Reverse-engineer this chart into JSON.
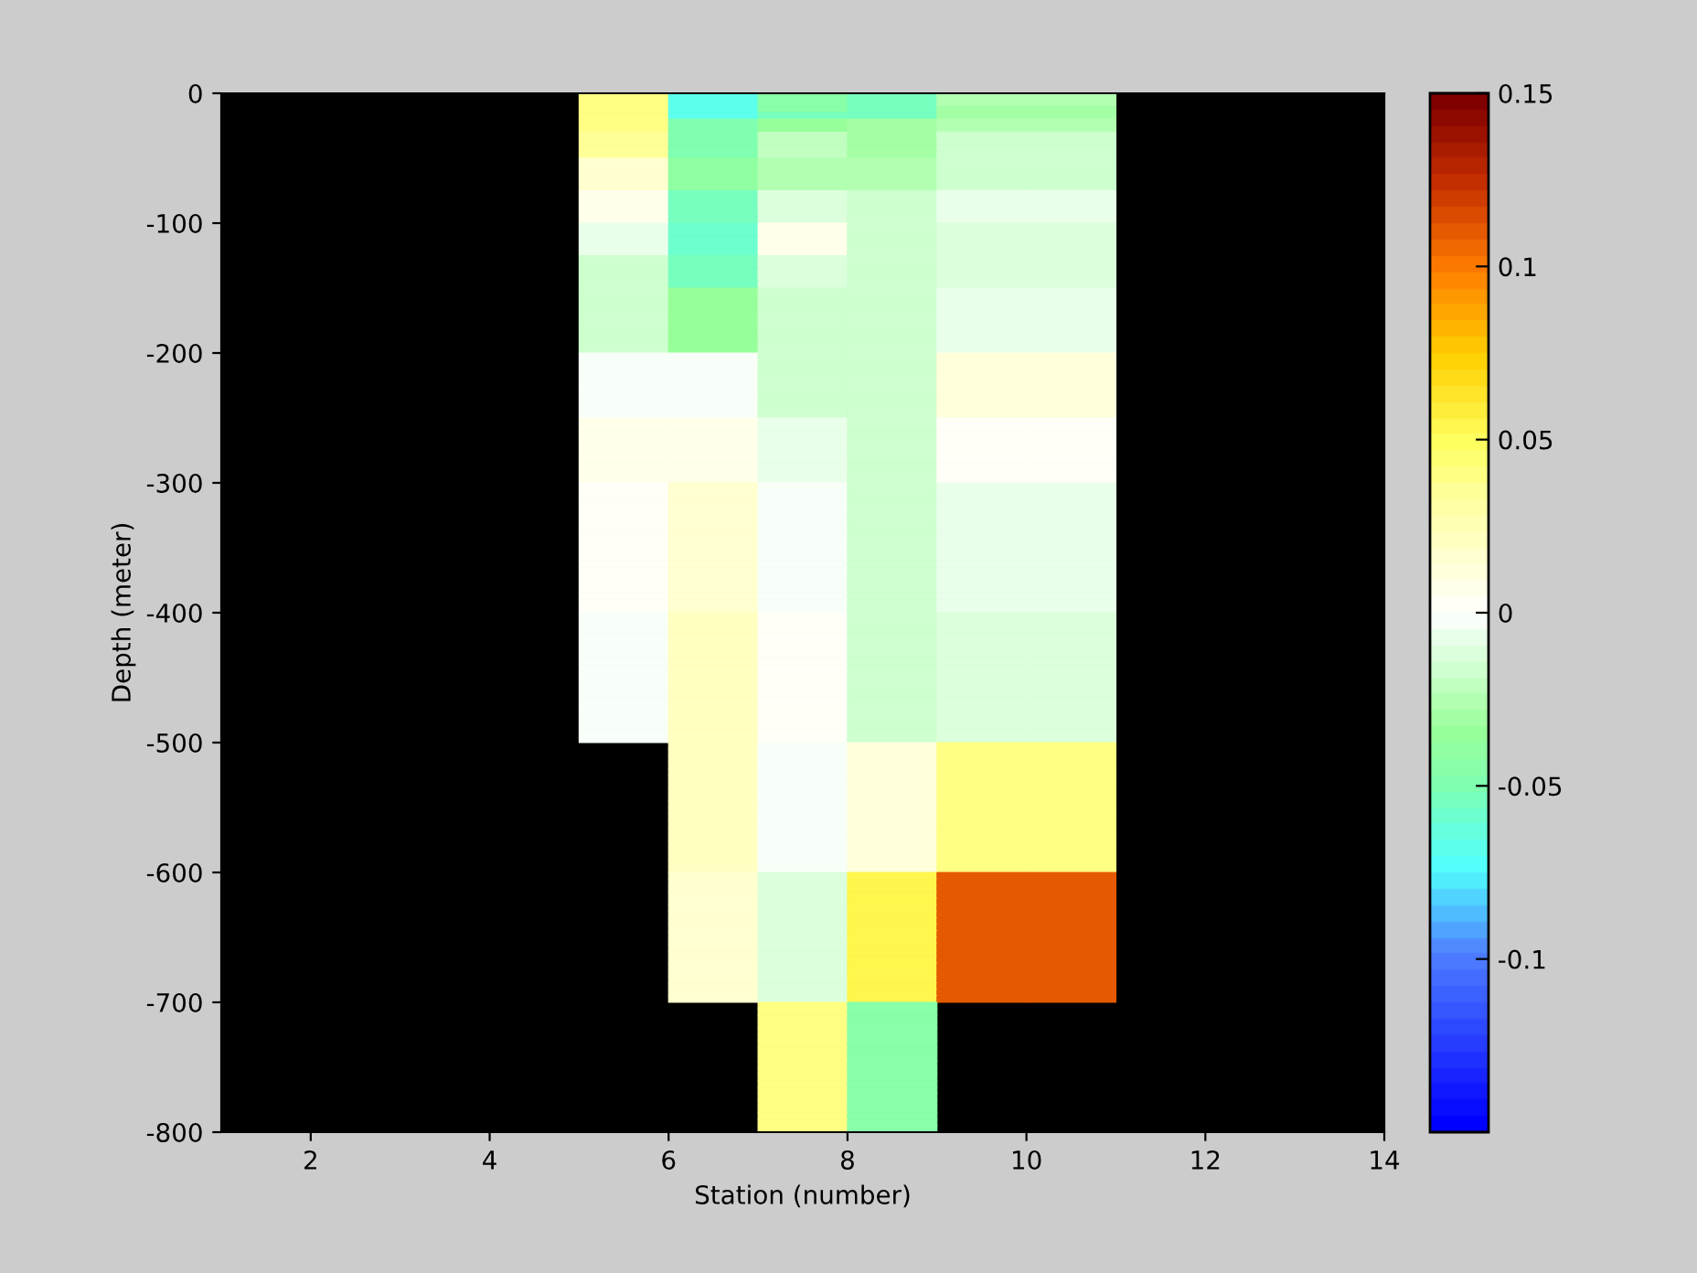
{
  "chart_data": {
    "type": "heatmap",
    "xlabel": "Station (number)",
    "ylabel": "Depth (meter)",
    "cells": [
      [
        null,
        null,
        null,
        null,
        0.04,
        -0.07,
        -0.045,
        -0.055,
        -0.025,
        -0.025,
        null,
        null,
        null
      ],
      [
        null,
        null,
        null,
        null,
        0.04,
        -0.07,
        -0.045,
        -0.055,
        -0.025,
        -0.025,
        null,
        null,
        null
      ],
      [
        null,
        null,
        null,
        null,
        0.04,
        -0.07,
        -0.045,
        -0.055,
        -0.032,
        -0.032,
        null,
        null,
        null
      ],
      [
        null,
        null,
        null,
        null,
        0.04,
        -0.07,
        -0.055,
        -0.055,
        -0.032,
        -0.032,
        null,
        null,
        null
      ],
      [
        null,
        null,
        null,
        null,
        0.038,
        -0.05,
        -0.035,
        -0.032,
        -0.025,
        -0.025,
        null,
        null,
        null
      ],
      [
        null,
        null,
        null,
        null,
        0.038,
        -0.05,
        -0.035,
        -0.032,
        -0.025,
        -0.025,
        null,
        null,
        null
      ],
      [
        null,
        null,
        null,
        null,
        0.033,
        -0.048,
        -0.02,
        -0.032,
        -0.015,
        -0.015,
        null,
        null,
        null
      ],
      [
        null,
        null,
        null,
        null,
        0.033,
        -0.048,
        -0.02,
        -0.032,
        -0.015,
        -0.015,
        null,
        null,
        null
      ],
      [
        null,
        null,
        null,
        null,
        0.033,
        -0.048,
        -0.02,
        -0.032,
        -0.015,
        -0.015,
        null,
        null,
        null
      ],
      [
        null,
        null,
        null,
        null,
        0.033,
        -0.048,
        -0.02,
        -0.032,
        -0.015,
        -0.015,
        null,
        null,
        null
      ],
      [
        null,
        null,
        null,
        null,
        0.018,
        -0.042,
        -0.028,
        -0.028,
        -0.015,
        -0.015,
        null,
        null,
        null
      ],
      [
        null,
        null,
        null,
        null,
        0.018,
        -0.042,
        -0.028,
        -0.028,
        -0.015,
        -0.015,
        null,
        null,
        null
      ],
      [
        null,
        null,
        null,
        null,
        0.018,
        -0.042,
        -0.028,
        -0.028,
        -0.015,
        -0.015,
        null,
        null,
        null
      ],
      [
        null,
        null,
        null,
        null,
        0.018,
        -0.042,
        -0.028,
        -0.028,
        -0.015,
        -0.015,
        null,
        null,
        null
      ],
      [
        null,
        null,
        null,
        null,
        0.018,
        -0.042,
        -0.028,
        -0.028,
        -0.015,
        -0.015,
        null,
        null,
        null
      ],
      [
        null,
        null,
        null,
        null,
        0.008,
        -0.052,
        -0.01,
        -0.015,
        -0.006,
        -0.006,
        null,
        null,
        null
      ],
      [
        null,
        null,
        null,
        null,
        0.008,
        -0.052,
        -0.01,
        -0.015,
        -0.006,
        -0.006,
        null,
        null,
        null
      ],
      [
        null,
        null,
        null,
        null,
        0.008,
        -0.052,
        -0.01,
        -0.015,
        -0.006,
        -0.006,
        null,
        null,
        null
      ],
      [
        null,
        null,
        null,
        null,
        0.008,
        -0.052,
        -0.01,
        -0.015,
        -0.006,
        -0.006,
        null,
        null,
        null
      ],
      [
        null,
        null,
        null,
        null,
        0.008,
        -0.052,
        -0.01,
        -0.015,
        -0.006,
        -0.006,
        null,
        null,
        null
      ],
      [
        null,
        null,
        null,
        null,
        -0.006,
        -0.058,
        0.008,
        -0.015,
        -0.01,
        -0.01,
        null,
        null,
        null
      ],
      [
        null,
        null,
        null,
        null,
        -0.006,
        -0.058,
        0.008,
        -0.015,
        -0.01,
        -0.01,
        null,
        null,
        null
      ],
      [
        null,
        null,
        null,
        null,
        -0.006,
        -0.058,
        0.008,
        -0.015,
        -0.01,
        -0.01,
        null,
        null,
        null
      ],
      [
        null,
        null,
        null,
        null,
        -0.006,
        -0.058,
        0.008,
        -0.015,
        -0.01,
        -0.01,
        null,
        null,
        null
      ],
      [
        null,
        null,
        null,
        null,
        -0.006,
        -0.058,
        0.008,
        -0.015,
        -0.01,
        -0.01,
        null,
        null,
        null
      ],
      [
        null,
        null,
        null,
        null,
        -0.015,
        -0.052,
        -0.01,
        -0.018,
        -0.01,
        -0.01,
        null,
        null,
        null
      ],
      [
        null,
        null,
        null,
        null,
        -0.015,
        -0.052,
        -0.01,
        -0.018,
        -0.01,
        -0.01,
        null,
        null,
        null
      ],
      [
        null,
        null,
        null,
        null,
        -0.015,
        -0.052,
        -0.01,
        -0.018,
        -0.01,
        -0.01,
        null,
        null,
        null
      ],
      [
        null,
        null,
        null,
        null,
        -0.015,
        -0.052,
        -0.01,
        -0.018,
        -0.01,
        -0.01,
        null,
        null,
        null
      ],
      [
        null,
        null,
        null,
        null,
        -0.015,
        -0.052,
        -0.01,
        -0.018,
        -0.01,
        -0.01,
        null,
        null,
        null
      ],
      [
        null,
        null,
        null,
        null,
        -0.015,
        -0.035,
        -0.018,
        -0.018,
        -0.006,
        -0.006,
        null,
        null,
        null
      ],
      [
        null,
        null,
        null,
        null,
        -0.015,
        -0.035,
        -0.018,
        -0.018,
        -0.006,
        -0.006,
        null,
        null,
        null
      ],
      [
        null,
        null,
        null,
        null,
        -0.015,
        -0.035,
        -0.018,
        -0.018,
        -0.006,
        -0.006,
        null,
        null,
        null
      ],
      [
        null,
        null,
        null,
        null,
        -0.015,
        -0.035,
        -0.018,
        -0.018,
        -0.006,
        -0.006,
        null,
        null,
        null
      ],
      [
        null,
        null,
        null,
        null,
        -0.015,
        -0.035,
        -0.018,
        -0.018,
        -0.006,
        -0.006,
        null,
        null,
        null
      ],
      [
        null,
        null,
        null,
        null,
        -0.015,
        -0.035,
        -0.018,
        -0.018,
        -0.006,
        -0.006,
        null,
        null,
        null
      ],
      [
        null,
        null,
        null,
        null,
        -0.015,
        -0.035,
        -0.018,
        -0.018,
        -0.006,
        -0.006,
        null,
        null,
        null
      ],
      [
        null,
        null,
        null,
        null,
        -0.015,
        -0.035,
        -0.018,
        -0.018,
        -0.006,
        -0.006,
        null,
        null,
        null
      ],
      [
        null,
        null,
        null,
        null,
        -0.015,
        -0.035,
        -0.018,
        -0.018,
        -0.006,
        -0.006,
        null,
        null,
        null
      ],
      [
        null,
        null,
        null,
        null,
        -0.015,
        -0.035,
        -0.018,
        -0.018,
        -0.006,
        -0.006,
        null,
        null,
        null
      ],
      [
        null,
        null,
        null,
        null,
        -0.003,
        -0.003,
        -0.015,
        -0.015,
        0.01,
        0.01,
        null,
        null,
        null
      ],
      [
        null,
        null,
        null,
        null,
        -0.003,
        -0.003,
        -0.015,
        -0.015,
        0.01,
        0.01,
        null,
        null,
        null
      ],
      [
        null,
        null,
        null,
        null,
        -0.003,
        -0.003,
        -0.015,
        -0.015,
        0.01,
        0.01,
        null,
        null,
        null
      ],
      [
        null,
        null,
        null,
        null,
        -0.003,
        -0.003,
        -0.015,
        -0.015,
        0.01,
        0.01,
        null,
        null,
        null
      ],
      [
        null,
        null,
        null,
        null,
        -0.003,
        -0.003,
        -0.015,
        -0.015,
        0.01,
        0.01,
        null,
        null,
        null
      ],
      [
        null,
        null,
        null,
        null,
        -0.003,
        -0.003,
        -0.015,
        -0.015,
        0.01,
        0.01,
        null,
        null,
        null
      ],
      [
        null,
        null,
        null,
        null,
        -0.003,
        -0.003,
        -0.015,
        -0.015,
        0.01,
        0.01,
        null,
        null,
        null
      ],
      [
        null,
        null,
        null,
        null,
        -0.003,
        -0.003,
        -0.015,
        -0.015,
        0.01,
        0.01,
        null,
        null,
        null
      ],
      [
        null,
        null,
        null,
        null,
        -0.003,
        -0.003,
        -0.015,
        -0.015,
        0.01,
        0.01,
        null,
        null,
        null
      ],
      [
        null,
        null,
        null,
        null,
        -0.003,
        -0.003,
        -0.015,
        -0.015,
        0.01,
        0.01,
        null,
        null,
        null
      ],
      [
        null,
        null,
        null,
        null,
        0.006,
        0.006,
        -0.008,
        -0.015,
        0.003,
        0.003,
        null,
        null,
        null
      ],
      [
        null,
        null,
        null,
        null,
        0.006,
        0.006,
        -0.008,
        -0.015,
        0.003,
        0.003,
        null,
        null,
        null
      ],
      [
        null,
        null,
        null,
        null,
        0.006,
        0.006,
        -0.008,
        -0.015,
        0.003,
        0.003,
        null,
        null,
        null
      ],
      [
        null,
        null,
        null,
        null,
        0.006,
        0.006,
        -0.008,
        -0.015,
        0.003,
        0.003,
        null,
        null,
        null
      ],
      [
        null,
        null,
        null,
        null,
        0.006,
        0.006,
        -0.008,
        -0.015,
        0.003,
        0.003,
        null,
        null,
        null
      ],
      [
        null,
        null,
        null,
        null,
        0.006,
        0.006,
        -0.008,
        -0.015,
        0.003,
        0.003,
        null,
        null,
        null
      ],
      [
        null,
        null,
        null,
        null,
        0.006,
        0.006,
        -0.008,
        -0.015,
        0.003,
        0.003,
        null,
        null,
        null
      ],
      [
        null,
        null,
        null,
        null,
        0.006,
        0.006,
        -0.008,
        -0.015,
        0.003,
        0.003,
        null,
        null,
        null
      ],
      [
        null,
        null,
        null,
        null,
        0.006,
        0.006,
        -0.008,
        -0.015,
        0.003,
        0.003,
        null,
        null,
        null
      ],
      [
        null,
        null,
        null,
        null,
        0.006,
        0.006,
        -0.008,
        -0.015,
        0.003,
        0.003,
        null,
        null,
        null
      ],
      [
        null,
        null,
        null,
        null,
        0.003,
        0.018,
        -0.003,
        -0.015,
        -0.008,
        -0.008,
        null,
        null,
        null
      ],
      [
        null,
        null,
        null,
        null,
        0.003,
        0.018,
        -0.003,
        -0.015,
        -0.008,
        -0.008,
        null,
        null,
        null
      ],
      [
        null,
        null,
        null,
        null,
        0.003,
        0.018,
        -0.003,
        -0.015,
        -0.008,
        -0.008,
        null,
        null,
        null
      ],
      [
        null,
        null,
        null,
        null,
        0.003,
        0.018,
        -0.003,
        -0.015,
        -0.008,
        -0.008,
        null,
        null,
        null
      ],
      [
        null,
        null,
        null,
        null,
        0.003,
        0.018,
        -0.003,
        -0.015,
        -0.008,
        -0.008,
        null,
        null,
        null
      ],
      [
        null,
        null,
        null,
        null,
        0.003,
        0.018,
        -0.003,
        -0.015,
        -0.008,
        -0.008,
        null,
        null,
        null
      ],
      [
        null,
        null,
        null,
        null,
        0.003,
        0.018,
        -0.003,
        -0.015,
        -0.008,
        -0.008,
        null,
        null,
        null
      ],
      [
        null,
        null,
        null,
        null,
        0.003,
        0.018,
        -0.003,
        -0.015,
        -0.008,
        -0.008,
        null,
        null,
        null
      ],
      [
        null,
        null,
        null,
        null,
        0.003,
        0.018,
        -0.003,
        -0.015,
        -0.008,
        -0.008,
        null,
        null,
        null
      ],
      [
        null,
        null,
        null,
        null,
        0.003,
        0.018,
        -0.003,
        -0.015,
        -0.008,
        -0.008,
        null,
        null,
        null
      ],
      [
        null,
        null,
        null,
        null,
        0.003,
        0.018,
        -0.003,
        -0.015,
        -0.008,
        -0.008,
        null,
        null,
        null
      ],
      [
        null,
        null,
        null,
        null,
        0.003,
        0.018,
        -0.003,
        -0.015,
        -0.008,
        -0.008,
        null,
        null,
        null
      ],
      [
        null,
        null,
        null,
        null,
        0.003,
        0.018,
        -0.003,
        -0.015,
        -0.008,
        -0.008,
        null,
        null,
        null
      ],
      [
        null,
        null,
        null,
        null,
        0.003,
        0.018,
        -0.003,
        -0.015,
        -0.008,
        -0.008,
        null,
        null,
        null
      ],
      [
        null,
        null,
        null,
        null,
        0.003,
        0.018,
        -0.003,
        -0.015,
        -0.008,
        -0.008,
        null,
        null,
        null
      ],
      [
        null,
        null,
        null,
        null,
        0.003,
        0.018,
        -0.003,
        -0.015,
        -0.008,
        -0.008,
        null,
        null,
        null
      ],
      [
        null,
        null,
        null,
        null,
        0.003,
        0.018,
        -0.003,
        -0.015,
        -0.008,
        -0.008,
        null,
        null,
        null
      ],
      [
        null,
        null,
        null,
        null,
        0.003,
        0.018,
        -0.003,
        -0.015,
        -0.008,
        -0.008,
        null,
        null,
        null
      ],
      [
        null,
        null,
        null,
        null,
        0.003,
        0.018,
        -0.003,
        -0.015,
        -0.008,
        -0.008,
        null,
        null,
        null
      ],
      [
        null,
        null,
        null,
        null,
        0.003,
        0.018,
        -0.003,
        -0.015,
        -0.008,
        -0.008,
        null,
        null,
        null
      ],
      [
        null,
        null,
        null,
        null,
        -0.003,
        0.02,
        0.003,
        -0.018,
        -0.01,
        -0.01,
        null,
        null,
        null
      ],
      [
        null,
        null,
        null,
        null,
        -0.003,
        0.02,
        0.003,
        -0.018,
        -0.01,
        -0.01,
        null,
        null,
        null
      ],
      [
        null,
        null,
        null,
        null,
        -0.003,
        0.02,
        0.003,
        -0.018,
        -0.01,
        -0.01,
        null,
        null,
        null
      ],
      [
        null,
        null,
        null,
        null,
        -0.003,
        0.02,
        0.003,
        -0.018,
        -0.01,
        -0.01,
        null,
        null,
        null
      ],
      [
        null,
        null,
        null,
        null,
        -0.003,
        0.02,
        0.003,
        -0.018,
        -0.01,
        -0.01,
        null,
        null,
        null
      ],
      [
        null,
        null,
        null,
        null,
        -0.003,
        0.02,
        0.003,
        -0.018,
        -0.01,
        -0.01,
        null,
        null,
        null
      ],
      [
        null,
        null,
        null,
        null,
        -0.003,
        0.02,
        0.003,
        -0.018,
        -0.01,
        -0.01,
        null,
        null,
        null
      ],
      [
        null,
        null,
        null,
        null,
        -0.003,
        0.02,
        0.003,
        -0.018,
        -0.01,
        -0.01,
        null,
        null,
        null
      ],
      [
        null,
        null,
        null,
        null,
        -0.003,
        0.02,
        0.003,
        -0.018,
        -0.01,
        -0.01,
        null,
        null,
        null
      ],
      [
        null,
        null,
        null,
        null,
        -0.003,
        0.02,
        0.003,
        -0.018,
        -0.01,
        -0.01,
        null,
        null,
        null
      ],
      [
        null,
        null,
        null,
        null,
        -0.003,
        0.02,
        0.003,
        -0.018,
        -0.01,
        -0.01,
        null,
        null,
        null
      ],
      [
        null,
        null,
        null,
        null,
        -0.003,
        0.02,
        0.003,
        -0.018,
        -0.01,
        -0.01,
        null,
        null,
        null
      ],
      [
        null,
        null,
        null,
        null,
        -0.003,
        0.02,
        0.003,
        -0.018,
        -0.01,
        -0.01,
        null,
        null,
        null
      ],
      [
        null,
        null,
        null,
        null,
        -0.003,
        0.02,
        0.003,
        -0.018,
        -0.01,
        -0.01,
        null,
        null,
        null
      ],
      [
        null,
        null,
        null,
        null,
        -0.003,
        0.02,
        0.003,
        -0.018,
        -0.01,
        -0.01,
        null,
        null,
        null
      ],
      [
        null,
        null,
        null,
        null,
        -0.003,
        0.02,
        0.003,
        -0.018,
        -0.01,
        -0.01,
        null,
        null,
        null
      ],
      [
        null,
        null,
        null,
        null,
        -0.003,
        0.02,
        0.003,
        -0.018,
        -0.01,
        -0.01,
        null,
        null,
        null
      ],
      [
        null,
        null,
        null,
        null,
        -0.003,
        0.02,
        0.003,
        -0.018,
        -0.01,
        -0.01,
        null,
        null,
        null
      ],
      [
        null,
        null,
        null,
        null,
        -0.003,
        0.02,
        0.003,
        -0.018,
        -0.01,
        -0.01,
        null,
        null,
        null
      ],
      [
        null,
        null,
        null,
        null,
        -0.003,
        0.02,
        0.003,
        -0.018,
        -0.01,
        -0.01,
        null,
        null,
        null
      ],
      [
        null,
        null,
        null,
        null,
        null,
        0.02,
        -0.003,
        0.01,
        0.04,
        0.04,
        null,
        null,
        null
      ],
      [
        null,
        null,
        null,
        null,
        null,
        0.02,
        -0.003,
        0.01,
        0.04,
        0.04,
        null,
        null,
        null
      ],
      [
        null,
        null,
        null,
        null,
        null,
        0.02,
        -0.003,
        0.01,
        0.04,
        0.04,
        null,
        null,
        null
      ],
      [
        null,
        null,
        null,
        null,
        null,
        0.02,
        -0.003,
        0.01,
        0.04,
        0.04,
        null,
        null,
        null
      ],
      [
        null,
        null,
        null,
        null,
        null,
        0.02,
        -0.003,
        0.01,
        0.04,
        0.04,
        null,
        null,
        null
      ],
      [
        null,
        null,
        null,
        null,
        null,
        0.02,
        -0.003,
        0.01,
        0.04,
        0.04,
        null,
        null,
        null
      ],
      [
        null,
        null,
        null,
        null,
        null,
        0.02,
        -0.003,
        0.01,
        0.04,
        0.04,
        null,
        null,
        null
      ],
      [
        null,
        null,
        null,
        null,
        null,
        0.02,
        -0.003,
        0.01,
        0.04,
        0.04,
        null,
        null,
        null
      ],
      [
        null,
        null,
        null,
        null,
        null,
        0.02,
        -0.003,
        0.01,
        0.04,
        0.04,
        null,
        null,
        null
      ],
      [
        null,
        null,
        null,
        null,
        null,
        0.02,
        -0.003,
        0.01,
        0.04,
        0.04,
        null,
        null,
        null
      ],
      [
        null,
        null,
        null,
        null,
        null,
        0.02,
        -0.003,
        0.01,
        0.04,
        0.04,
        null,
        null,
        null
      ],
      [
        null,
        null,
        null,
        null,
        null,
        0.02,
        -0.003,
        0.01,
        0.04,
        0.04,
        null,
        null,
        null
      ],
      [
        null,
        null,
        null,
        null,
        null,
        0.02,
        -0.003,
        0.01,
        0.04,
        0.04,
        null,
        null,
        null
      ],
      [
        null,
        null,
        null,
        null,
        null,
        0.02,
        -0.003,
        0.01,
        0.04,
        0.04,
        null,
        null,
        null
      ],
      [
        null,
        null,
        null,
        null,
        null,
        0.02,
        -0.003,
        0.01,
        0.04,
        0.04,
        null,
        null,
        null
      ],
      [
        null,
        null,
        null,
        null,
        null,
        0.02,
        -0.003,
        0.01,
        0.04,
        0.04,
        null,
        null,
        null
      ],
      [
        null,
        null,
        null,
        null,
        null,
        0.02,
        -0.003,
        0.01,
        0.04,
        0.04,
        null,
        null,
        null
      ],
      [
        null,
        null,
        null,
        null,
        null,
        0.02,
        -0.003,
        0.01,
        0.04,
        0.04,
        null,
        null,
        null
      ],
      [
        null,
        null,
        null,
        null,
        null,
        0.02,
        -0.003,
        0.01,
        0.04,
        0.04,
        null,
        null,
        null
      ],
      [
        null,
        null,
        null,
        null,
        null,
        0.02,
        -0.003,
        0.01,
        0.04,
        0.04,
        null,
        null,
        null
      ],
      [
        null,
        null,
        null,
        null,
        null,
        0.015,
        -0.01,
        0.055,
        0.11,
        0.11,
        null,
        null,
        null
      ],
      [
        null,
        null,
        null,
        null,
        null,
        0.015,
        -0.01,
        0.055,
        0.11,
        0.11,
        null,
        null,
        null
      ],
      [
        null,
        null,
        null,
        null,
        null,
        0.015,
        -0.01,
        0.055,
        0.11,
        0.11,
        null,
        null,
        null
      ],
      [
        null,
        null,
        null,
        null,
        null,
        0.015,
        -0.01,
        0.055,
        0.11,
        0.11,
        null,
        null,
        null
      ],
      [
        null,
        null,
        null,
        null,
        null,
        0.015,
        -0.01,
        0.055,
        0.11,
        0.11,
        null,
        null,
        null
      ],
      [
        null,
        null,
        null,
        null,
        null,
        0.015,
        -0.01,
        0.055,
        0.11,
        0.11,
        null,
        null,
        null
      ],
      [
        null,
        null,
        null,
        null,
        null,
        0.015,
        -0.01,
        0.055,
        0.11,
        0.11,
        null,
        null,
        null
      ],
      [
        null,
        null,
        null,
        null,
        null,
        0.015,
        -0.01,
        0.055,
        0.11,
        0.11,
        null,
        null,
        null
      ],
      [
        null,
        null,
        null,
        null,
        null,
        0.015,
        -0.01,
        0.055,
        0.11,
        0.11,
        null,
        null,
        null
      ],
      [
        null,
        null,
        null,
        null,
        null,
        0.015,
        -0.01,
        0.055,
        0.11,
        0.11,
        null,
        null,
        null
      ],
      [
        null,
        null,
        null,
        null,
        null,
        0.015,
        -0.01,
        0.055,
        0.11,
        0.11,
        null,
        null,
        null
      ],
      [
        null,
        null,
        null,
        null,
        null,
        0.015,
        -0.01,
        0.055,
        0.11,
        0.11,
        null,
        null,
        null
      ],
      [
        null,
        null,
        null,
        null,
        null,
        0.015,
        -0.01,
        0.055,
        0.11,
        0.11,
        null,
        null,
        null
      ],
      [
        null,
        null,
        null,
        null,
        null,
        0.015,
        -0.01,
        0.055,
        0.11,
        0.11,
        null,
        null,
        null
      ],
      [
        null,
        null,
        null,
        null,
        null,
        0.015,
        -0.01,
        0.055,
        0.11,
        0.11,
        null,
        null,
        null
      ],
      [
        null,
        null,
        null,
        null,
        null,
        0.015,
        -0.01,
        0.055,
        0.11,
        0.11,
        null,
        null,
        null
      ],
      [
        null,
        null,
        null,
        null,
        null,
        0.015,
        -0.01,
        0.055,
        0.11,
        0.11,
        null,
        null,
        null
      ],
      [
        null,
        null,
        null,
        null,
        null,
        0.015,
        -0.01,
        0.055,
        0.11,
        0.11,
        null,
        null,
        null
      ],
      [
        null,
        null,
        null,
        null,
        null,
        0.015,
        -0.01,
        0.055,
        0.11,
        0.11,
        null,
        null,
        null
      ],
      [
        null,
        null,
        null,
        null,
        null,
        0.015,
        -0.01,
        0.055,
        0.11,
        0.11,
        null,
        null,
        null
      ],
      [
        null,
        null,
        null,
        null,
        null,
        null,
        0.042,
        -0.045,
        null,
        null,
        null,
        null,
        null
      ],
      [
        null,
        null,
        null,
        null,
        null,
        null,
        0.042,
        -0.045,
        null,
        null,
        null,
        null,
        null
      ],
      [
        null,
        null,
        null,
        null,
        null,
        null,
        0.042,
        -0.045,
        null,
        null,
        null,
        null,
        null
      ],
      [
        null,
        null,
        null,
        null,
        null,
        null,
        0.042,
        -0.045,
        null,
        null,
        null,
        null,
        null
      ],
      [
        null,
        null,
        null,
        null,
        null,
        null,
        0.042,
        -0.045,
        null,
        null,
        null,
        null,
        null
      ],
      [
        null,
        null,
        null,
        null,
        null,
        null,
        0.042,
        -0.045,
        null,
        null,
        null,
        null,
        null
      ],
      [
        null,
        null,
        null,
        null,
        null,
        null,
        0.042,
        -0.045,
        null,
        null,
        null,
        null,
        null
      ],
      [
        null,
        null,
        null,
        null,
        null,
        null,
        0.042,
        -0.045,
        null,
        null,
        null,
        null,
        null
      ],
      [
        null,
        null,
        null,
        null,
        null,
        null,
        0.042,
        -0.045,
        null,
        null,
        null,
        null,
        null
      ],
      [
        null,
        null,
        null,
        null,
        null,
        null,
        0.042,
        -0.045,
        null,
        null,
        null,
        null,
        null
      ],
      [
        null,
        null,
        null,
        null,
        null,
        null,
        0.042,
        -0.045,
        null,
        null,
        null,
        null,
        null
      ],
      [
        null,
        null,
        null,
        null,
        null,
        null,
        0.042,
        -0.045,
        null,
        null,
        null,
        null,
        null
      ],
      [
        null,
        null,
        null,
        null,
        null,
        null,
        0.042,
        -0.045,
        null,
        null,
        null,
        null,
        null
      ],
      [
        null,
        null,
        null,
        null,
        null,
        null,
        0.042,
        -0.045,
        null,
        null,
        null,
        null,
        null
      ],
      [
        null,
        null,
        null,
        null,
        null,
        null,
        0.042,
        -0.045,
        null,
        null,
        null,
        null,
        null
      ],
      [
        null,
        null,
        null,
        null,
        null,
        null,
        0.042,
        -0.045,
        null,
        null,
        null,
        null,
        null
      ],
      [
        null,
        null,
        null,
        null,
        null,
        null,
        0.042,
        -0.045,
        null,
        null,
        null,
        null,
        null
      ],
      [
        null,
        null,
        null,
        null,
        null,
        null,
        0.042,
        -0.045,
        null,
        null,
        null,
        null,
        null
      ],
      [
        null,
        null,
        null,
        null,
        null,
        null,
        0.042,
        -0.045,
        null,
        null,
        null,
        null,
        null
      ],
      [
        null,
        null,
        null,
        null,
        null,
        null,
        0.042,
        -0.045,
        null,
        null,
        null,
        null,
        null
      ]
    ],
    "clim": [
      -0.15,
      0.15
    ],
    "cticks": [
      -0.1,
      -0.05,
      0,
      0.05,
      0.1,
      0.15
    ],
    "xlim": [
      1,
      14
    ],
    "xticks": [
      2,
      4,
      6,
      8,
      10,
      12,
      14
    ],
    "ylim": [
      -800,
      0
    ],
    "yticks": [
      -800,
      -700,
      -600,
      -500,
      -400,
      -300,
      -200,
      -100,
      0
    ]
  }
}
